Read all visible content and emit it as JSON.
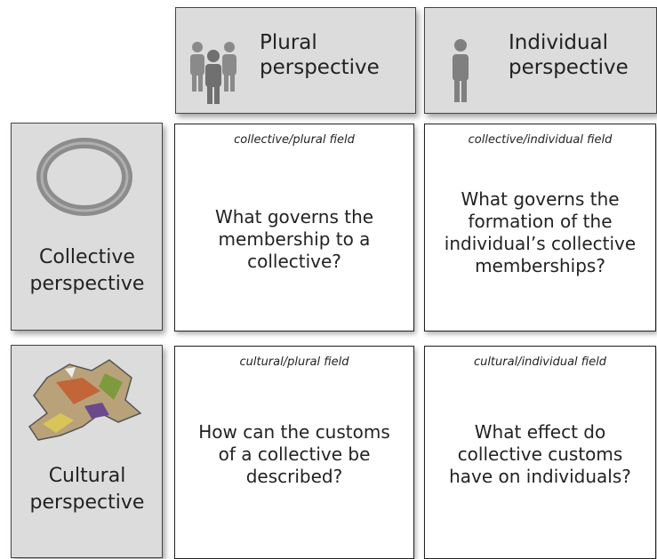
{
  "columns": [
    {
      "label": "Plural perspective"
    },
    {
      "label": "Individual perspective"
    }
  ],
  "rows": [
    {
      "label": "Collective perspective"
    },
    {
      "label": "Cultural perspective"
    }
  ],
  "cells": [
    [
      {
        "field": "collective/plural field",
        "question": "What governs the membership to a collective?"
      },
      {
        "field": "collective/individual field",
        "question": "What governs the formation of the individual’s collective memberships?"
      }
    ],
    [
      {
        "field": "cultural/plural field",
        "question": "How can the customs of a collective be described?"
      },
      {
        "field": "cultural/individual field",
        "question": "What effect do collective customs have on individuals?"
      }
    ]
  ]
}
